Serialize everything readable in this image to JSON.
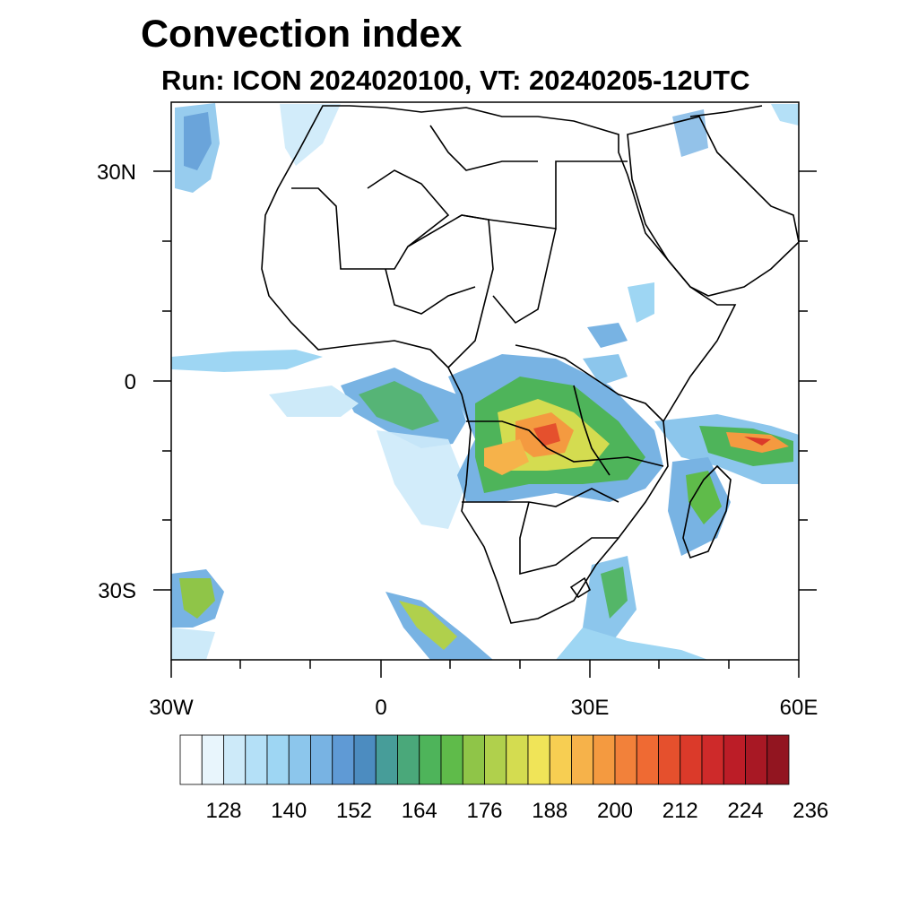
{
  "title": "Convection index",
  "subtitle": "Run: ICON 2024020100,  VT: 20240205-12UTC",
  "axes": {
    "lat_labels": [
      "30N",
      "0",
      "30S"
    ],
    "lon_labels": [
      "30W",
      "0",
      "30E",
      "60E"
    ]
  },
  "colorbar": {
    "labels": [
      "128",
      "140",
      "152",
      "164",
      "176",
      "188",
      "200",
      "212",
      "224",
      "236"
    ],
    "colors": [
      "#ffffff",
      "#e8f5fc",
      "#cdeaf9",
      "#b4e0f7",
      "#9ed6f3",
      "#8cc6ec",
      "#78b3e3",
      "#5f9ad5",
      "#4c8cc0",
      "#479d99",
      "#4aa87a",
      "#4eb45a",
      "#5fbb4a",
      "#8fc548",
      "#b0d04c",
      "#d4dc50",
      "#f0e458",
      "#f7ce52",
      "#f6b24a",
      "#f49a40",
      "#f2813a",
      "#ef6a33",
      "#e5502d",
      "#db3a2a",
      "#ce2a2a",
      "#bc1d27",
      "#a81824",
      "#921520"
    ]
  }
}
